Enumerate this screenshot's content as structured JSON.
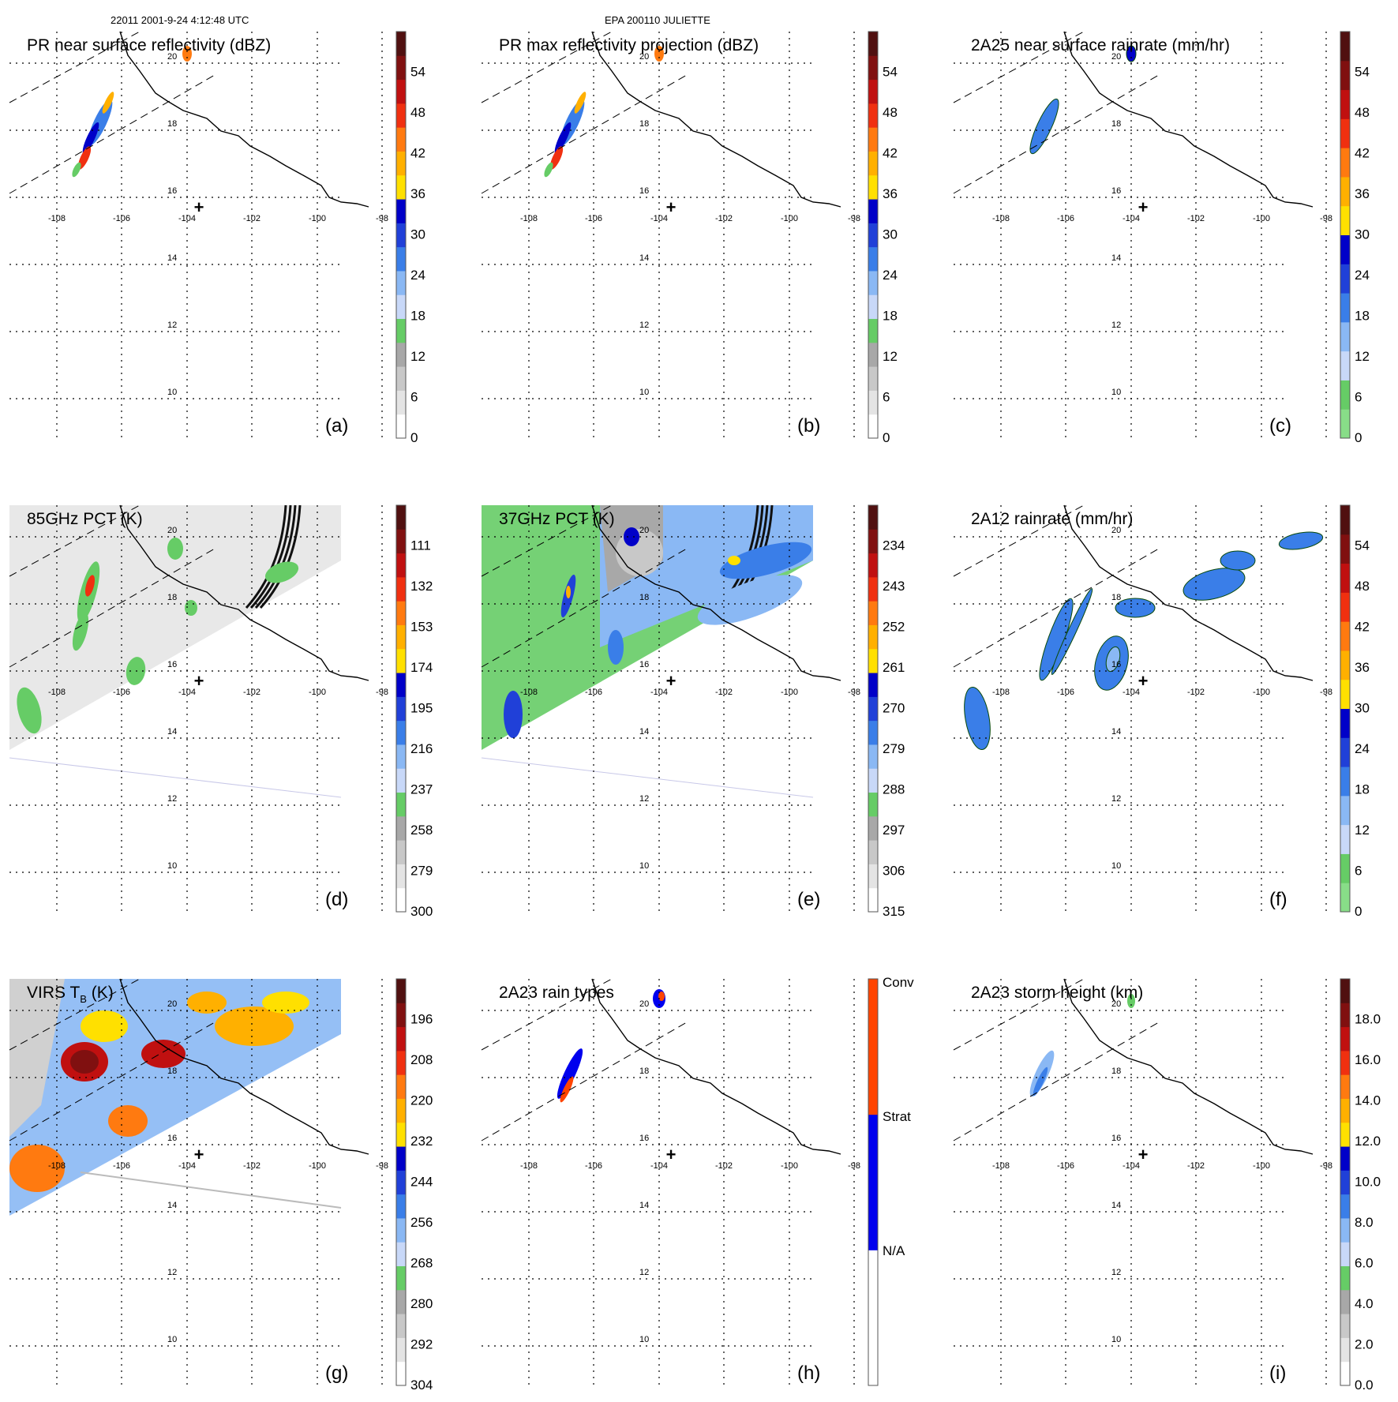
{
  "header": {
    "orbit_time": "22011 2001-9-24 4:12:48 UTC",
    "storm": "EPA 200110 JULIETTE"
  },
  "map": {
    "lon_labels": [
      "-108",
      "-106",
      "-104",
      "-102",
      "-100",
      "-98"
    ],
    "lat_labels": [
      "20",
      "18",
      "16",
      "14",
      "12",
      "10"
    ],
    "center_marker": "+"
  },
  "panels": [
    {
      "title": "PR near surface reflectivity (dBZ)",
      "letter": "(a)",
      "kind": "pr",
      "legend": {
        "labels": [
          "0",
          "6",
          "12",
          "18",
          "24",
          "30",
          "36",
          "42",
          "48",
          "54"
        ],
        "colors": [
          "#ffffff",
          "#e4e4e4",
          "#c8c8c8",
          "#a8a8a8",
          "#66cc66",
          "#c8d8f8",
          "#8ab8f4",
          "#3a7ee8",
          "#2040d8",
          "#0000c8",
          "#ffe000",
          "#ffb000",
          "#ff7a10",
          "#f03010",
          "#c01010",
          "#801010",
          "#501010"
        ]
      }
    },
    {
      "title": "PR max reflectivity projection (dBZ)",
      "letter": "(b)",
      "kind": "pr",
      "legend": {
        "labels": [
          "0",
          "6",
          "12",
          "18",
          "24",
          "30",
          "36",
          "42",
          "48",
          "54"
        ],
        "colors": [
          "#ffffff",
          "#e4e4e4",
          "#c8c8c8",
          "#a8a8a8",
          "#66cc66",
          "#c8d8f8",
          "#8ab8f4",
          "#3a7ee8",
          "#2040d8",
          "#0000c8",
          "#ffe000",
          "#ffb000",
          "#ff7a10",
          "#f03010",
          "#c01010",
          "#801010",
          "#501010"
        ]
      }
    },
    {
      "title": "2A25 near surface rainrate (mm/hr)",
      "letter": "(c)",
      "kind": "rain",
      "legend": {
        "labels": [
          "0",
          "6",
          "12",
          "18",
          "24",
          "30",
          "36",
          "42",
          "48",
          "54"
        ],
        "colors": [
          "#88dd88",
          "#66cc66",
          "#c8d8f8",
          "#8ab8f4",
          "#3a7ee8",
          "#2040d8",
          "#0000c8",
          "#ffe000",
          "#ffb000",
          "#ff7a10",
          "#f03010",
          "#c01010",
          "#801010",
          "#501010"
        ]
      }
    },
    {
      "title": "85GHz PCT (K)",
      "letter": "(d)",
      "kind": "pct85",
      "legend": {
        "labels": [
          "300",
          "279",
          "258",
          "237",
          "216",
          "195",
          "174",
          "153",
          "132",
          "111"
        ],
        "colors": [
          "#ffffff",
          "#e4e4e4",
          "#c8c8c8",
          "#a8a8a8",
          "#66cc66",
          "#c8d8f8",
          "#8ab8f4",
          "#3a7ee8",
          "#2040d8",
          "#0000c8",
          "#ffe000",
          "#ffb000",
          "#ff7a10",
          "#f03010",
          "#c01010",
          "#801010",
          "#501010"
        ]
      }
    },
    {
      "title": "37GHz PCT (K)",
      "letter": "(e)",
      "kind": "pct37",
      "legend": {
        "labels": [
          "315",
          "306",
          "297",
          "288",
          "279",
          "270",
          "261",
          "252",
          "243",
          "234"
        ],
        "colors": [
          "#ffffff",
          "#e4e4e4",
          "#c8c8c8",
          "#a8a8a8",
          "#66cc66",
          "#c8d8f8",
          "#8ab8f4",
          "#3a7ee8",
          "#2040d8",
          "#0000c8",
          "#ffe000",
          "#ffb000",
          "#ff7a10",
          "#f03010",
          "#c01010",
          "#801010",
          "#501010"
        ]
      }
    },
    {
      "title": "2A12 rainrate (mm/hr)",
      "letter": "(f)",
      "kind": "rain12",
      "legend": {
        "labels": [
          "0",
          "6",
          "12",
          "18",
          "24",
          "30",
          "36",
          "42",
          "48",
          "54"
        ],
        "colors": [
          "#88dd88",
          "#66cc66",
          "#c8d8f8",
          "#8ab8f4",
          "#3a7ee8",
          "#2040d8",
          "#0000c8",
          "#ffe000",
          "#ffb000",
          "#ff7a10",
          "#f03010",
          "#c01010",
          "#801010",
          "#501010"
        ]
      }
    },
    {
      "title": "VIRS T",
      "title_sub": "B",
      "title_tail": " (K)",
      "letter": "(g)",
      "kind": "virs",
      "legend": {
        "labels": [
          "304",
          "292",
          "280",
          "268",
          "256",
          "244",
          "232",
          "220",
          "208",
          "196"
        ],
        "colors": [
          "#ffffff",
          "#e4e4e4",
          "#c8c8c8",
          "#a8a8a8",
          "#66cc66",
          "#c8d8f8",
          "#8ab8f4",
          "#3a7ee8",
          "#2040d8",
          "#0000c8",
          "#ffe000",
          "#ffb000",
          "#ff7a10",
          "#f03010",
          "#c01010",
          "#801010",
          "#501010"
        ]
      }
    },
    {
      "title": "2A23 rain types",
      "letter": "(h)",
      "kind": "types",
      "legend": {
        "labels": [
          "N/A",
          "Strat",
          "Conv"
        ],
        "colors": [
          "#ffffff",
          "#0000ee",
          "#ff4400"
        ]
      }
    },
    {
      "title": "2A23 storm height (km)",
      "letter": "(i)",
      "kind": "height",
      "legend": {
        "labels": [
          "0.0",
          "2.0",
          "4.0",
          "6.0",
          "8.0",
          "10.0",
          "12.0",
          "14.0",
          "16.0",
          "18.0"
        ],
        "colors": [
          "#ffffff",
          "#e4e4e4",
          "#c8c8c8",
          "#a8a8a8",
          "#66cc66",
          "#c8d8f8",
          "#8ab8f4",
          "#3a7ee8",
          "#2040d8",
          "#0000c8",
          "#ffe000",
          "#ffb000",
          "#ff7a10",
          "#f03010",
          "#c01010",
          "#801010",
          "#501010"
        ]
      }
    }
  ]
}
